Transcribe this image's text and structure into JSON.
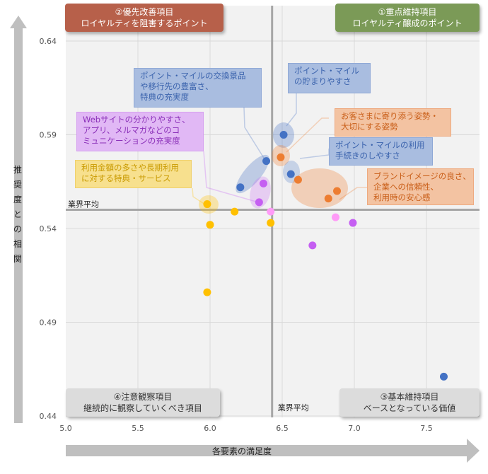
{
  "chart_data": {
    "type": "scatter",
    "xlabel": "各要素の満足度",
    "ylabel": "推奨度との相関",
    "xlim": [
      5.0,
      7.87
    ],
    "ylim": [
      0.44,
      0.659
    ],
    "xticks": [
      "5.0",
      "5.5",
      "6.0",
      "6.5",
      "7.0",
      "7.5"
    ],
    "yticks": [
      "0.64",
      "0.59",
      "0.54",
      "0.49",
      "0.44"
    ],
    "grid": true,
    "legend": "none",
    "reference_lines": {
      "x": 6.43,
      "y": 0.55,
      "label": "業界平均"
    },
    "series": [
      {
        "color": "#4472c4",
        "points": [
          [
            6.51,
            0.59
          ],
          [
            6.39,
            0.576
          ],
          [
            6.21,
            0.562
          ],
          [
            6.56,
            0.569
          ],
          [
            7.62,
            0.461
          ]
        ]
      },
      {
        "color": "#ed7d31",
        "points": [
          [
            6.49,
            0.578
          ],
          [
            6.61,
            0.566
          ],
          [
            6.82,
            0.556
          ],
          [
            6.88,
            0.56
          ]
        ]
      },
      {
        "color": "#c55ff2",
        "points": [
          [
            6.37,
            0.564
          ],
          [
            6.34,
            0.554
          ],
          [
            6.99,
            0.543
          ],
          [
            6.71,
            0.531
          ]
        ]
      },
      {
        "color": "#ff9bf7",
        "points": [
          [
            6.42,
            0.549
          ],
          [
            6.87,
            0.546
          ]
        ]
      },
      {
        "color": "#ffc000",
        "points": [
          [
            5.98,
            0.553
          ],
          [
            6.17,
            0.549
          ],
          [
            6.0,
            0.542
          ],
          [
            6.42,
            0.543
          ],
          [
            5.98,
            0.506
          ]
        ]
      }
    ],
    "quadrants": [
      {
        "title": "②優先改善項目",
        "subtitle": "ロイヤルティを阻害するポイント",
        "color": "#b7604a"
      },
      {
        "title": "①重点維持項目",
        "subtitle": "ロイヤルティ醸成のポイント",
        "color": "#7b9a57"
      },
      {
        "title": "④注意観察項目",
        "subtitle": "継続的に観察していくべき項目",
        "color": "#d9d9d9"
      },
      {
        "title": "③基本維持項目",
        "subtitle": "ベースとなっている価値",
        "color": "#d9d9d9"
      }
    ],
    "annotations": [
      {
        "lines": [
          "ポイント・マイルの交換景品",
          "や移行先の豊富さ、",
          "特典の充実度"
        ],
        "color": "#4472c4"
      },
      {
        "lines": [
          "ポイント・マイル",
          "の貯まりやすさ"
        ],
        "color": "#4472c4"
      },
      {
        "lines": [
          "お客さまに寄り添う姿勢・",
          "大切にする姿勢"
        ],
        "color": "#ed7d31"
      },
      {
        "lines": [
          "ポイント・マイルの利用",
          "手続きのしやすさ"
        ],
        "color": "#4472c4"
      },
      {
        "lines": [
          "Webサイトの分かりやすさ、",
          "アプリ、メルマガなどのコ",
          "ミュニケーションの充実度"
        ],
        "color": "#c55ff2"
      },
      {
        "lines": [
          "利用金額の多さや長期利用",
          "に対する特典・サービス"
        ],
        "color": "#ffc000"
      },
      {
        "lines": [
          "ブランドイメージの良さ、",
          "企業への信頼性、",
          "利用時の安心感"
        ],
        "color": "#ed7d31"
      }
    ]
  }
}
